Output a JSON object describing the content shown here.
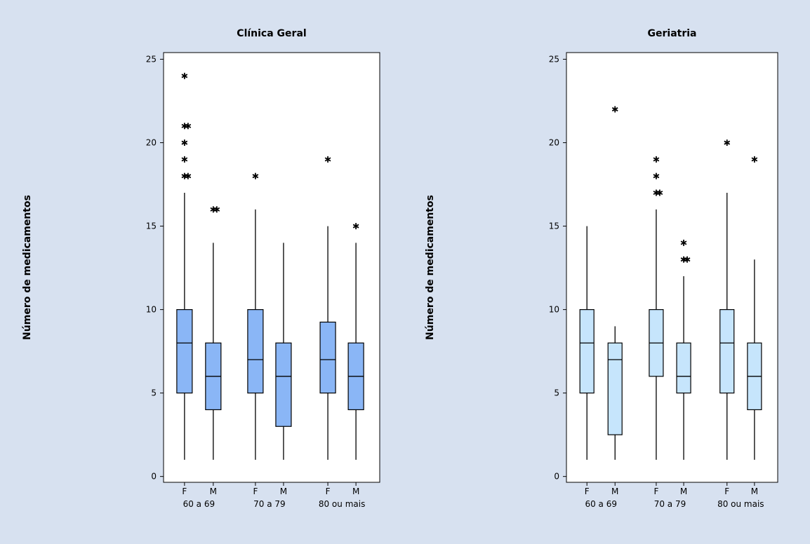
{
  "chart_data": [
    {
      "type": "box",
      "title": "Clínica Geral",
      "y_label": "Número de medicamentos",
      "categories": [
        "F",
        "M",
        "F",
        "M",
        "F",
        "M"
      ],
      "groups": [
        "60 a 69",
        "70 a 79",
        "80 ou mais"
      ],
      "color": "#8ab6f6",
      "ylim": [
        -0.35,
        25.4
      ],
      "yticks": [
        0,
        5,
        10,
        15,
        20,
        25
      ],
      "boxes": [
        {
          "min": 1,
          "q1": 5,
          "median": 8,
          "q3": 10,
          "max": 17,
          "outliers": [
            18,
            18,
            19,
            20,
            21,
            21,
            24
          ]
        },
        {
          "min": 1,
          "q1": 4,
          "median": 6,
          "q3": 8,
          "max": 14,
          "outliers": [
            16,
            16
          ]
        },
        {
          "min": 1,
          "q1": 5,
          "median": 7,
          "q3": 10,
          "max": 16,
          "outliers": [
            18
          ]
        },
        {
          "min": 1,
          "q1": 3,
          "median": 6,
          "q3": 8,
          "max": 14,
          "outliers": []
        },
        {
          "min": 1,
          "q1": 5,
          "median": 7,
          "q3": 9.25,
          "max": 15,
          "outliers": [
            19
          ]
        },
        {
          "min": 1,
          "q1": 4,
          "median": 6,
          "q3": 8,
          "max": 14,
          "outliers": [
            15
          ]
        }
      ]
    },
    {
      "type": "box",
      "title": "Geriatria",
      "y_label": "Número de medicamentos",
      "categories": [
        "F",
        "M",
        "F",
        "M",
        "F",
        "M"
      ],
      "groups": [
        "60 a 69",
        "70 a 79",
        "80 ou mais"
      ],
      "color": "#c6e5fc",
      "ylim": [
        -0.35,
        25.4
      ],
      "yticks": [
        0,
        5,
        10,
        15,
        20,
        25
      ],
      "boxes": [
        {
          "min": 1,
          "q1": 5,
          "median": 8,
          "q3": 10,
          "max": 15,
          "outliers": []
        },
        {
          "min": 1,
          "q1": 2.5,
          "median": 7,
          "q3": 8,
          "max": 9,
          "outliers": [
            22
          ]
        },
        {
          "min": 1,
          "q1": 6,
          "median": 8,
          "q3": 10,
          "max": 16,
          "outliers": [
            17,
            17,
            18,
            19
          ]
        },
        {
          "min": 1,
          "q1": 5,
          "median": 6,
          "q3": 8,
          "max": 12,
          "outliers": [
            13,
            13,
            14
          ]
        },
        {
          "min": 1,
          "q1": 5,
          "median": 8,
          "q3": 10,
          "max": 17,
          "outliers": [
            20
          ]
        },
        {
          "min": 1,
          "q1": 4,
          "median": 6,
          "q3": 8,
          "max": 13,
          "outliers": [
            19
          ]
        }
      ]
    }
  ]
}
